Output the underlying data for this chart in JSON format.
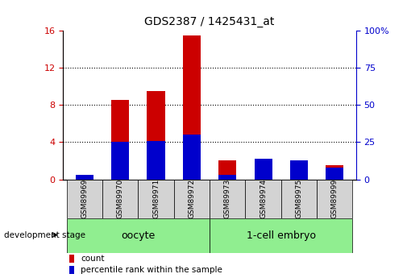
{
  "title": "GDS2387 / 1425431_at",
  "samples": [
    "GSM89969",
    "GSM89970",
    "GSM89971",
    "GSM89972",
    "GSM89973",
    "GSM89974",
    "GSM89975",
    "GSM89999"
  ],
  "count_values": [
    0.5,
    8.5,
    9.5,
    15.5,
    2.0,
    2.0,
    1.7,
    1.5
  ],
  "percentile_values": [
    3.0,
    25.0,
    26.0,
    30.0,
    3.0,
    14.0,
    13.0,
    8.0
  ],
  "ylim_left": [
    0,
    16
  ],
  "ylim_right": [
    0,
    100
  ],
  "yticks_left": [
    0,
    4,
    8,
    12,
    16
  ],
  "yticks_right": [
    0,
    25,
    50,
    75,
    100
  ],
  "bar_color_count": "#cc0000",
  "bar_color_percentile": "#0000cc",
  "bar_width": 0.5,
  "axis_color_left": "#cc0000",
  "axis_color_right": "#0000cc",
  "legend_count": "count",
  "legend_percentile": "percentile rank within the sample",
  "group1_label": "oocyte",
  "group2_label": "1-cell embryo",
  "group_color": "#90EE90",
  "sample_box_color": "#d3d3d3",
  "dev_stage_label": "development stage"
}
